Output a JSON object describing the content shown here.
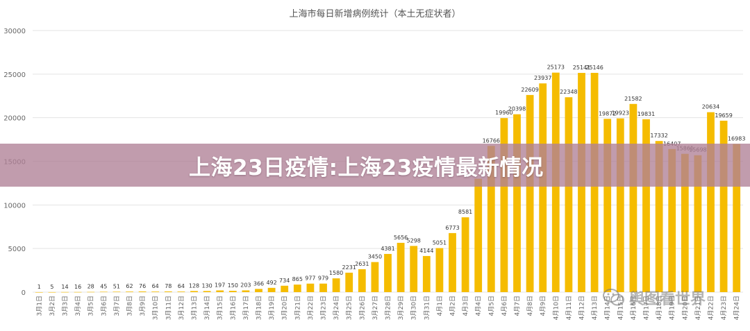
{
  "banner": {
    "headline": "上海23日疫情:上海23疫情最新情况"
  },
  "watermark": {
    "text": "舆图看世界",
    "icon": "wechat-icon"
  },
  "colors": {
    "bar": "#F5BC00",
    "grid": "#E3E3E3",
    "axis_text": "#666666",
    "label_text": "#333333"
  },
  "chart_data": {
    "type": "bar",
    "title": "上海市每日新增病例统计（本土无症状者）",
    "xlabel": "",
    "ylabel": "",
    "ylim": [
      0,
      30000
    ],
    "yticks": [
      0,
      5000,
      10000,
      15000,
      20000,
      25000,
      30000
    ],
    "grid": true,
    "categories": [
      "3月1日",
      "3月2日",
      "3月3日",
      "3月4日",
      "3月5日",
      "3月6日",
      "3月7日",
      "3月8日",
      "3月9日",
      "3月10日",
      "3月11日",
      "3月12日",
      "3月13日",
      "3月14日",
      "3月15日",
      "3月16日",
      "3月17日",
      "3月18日",
      "3月19日",
      "3月20日",
      "3月21日",
      "3月22日",
      "3月23日",
      "3月24日",
      "3月25日",
      "3月26日",
      "3月27日",
      "3月28日",
      "3月29日",
      "3月30日",
      "3月31日",
      "4月1日",
      "4月2日",
      "4月3日",
      "4月4日",
      "4月5日",
      "4月6日",
      "4月7日",
      "4月8日",
      "4月9日",
      "4月10日",
      "4月11日",
      "4月12日",
      "4月13日",
      "4月14日",
      "4月15日",
      "4月16日",
      "4月17日",
      "4月18日",
      "4月19日",
      "4月20日",
      "4月21日",
      "4月22日",
      "4月23日",
      "4月24日"
    ],
    "values": [
      1,
      5,
      14,
      16,
      28,
      45,
      51,
      62,
      76,
      64,
      78,
      64,
      128,
      130,
      197,
      150,
      203,
      366,
      492,
      734,
      865,
      977,
      979,
      1580,
      2231,
      2631,
      3450,
      4381,
      5656,
      5298,
      4144,
      5051,
      6773,
      8581,
      13000,
      16766,
      19960,
      20398,
      22609,
      23937,
      25173,
      22348,
      25141,
      25146,
      19872,
      19923,
      21582,
      19831,
      17332,
      16407,
      15861,
      15698,
      20634,
      19659,
      16983
    ],
    "data_labels": [
      "1",
      "5",
      "14",
      "16",
      "28",
      "45",
      "51",
      "62",
      "76",
      "64",
      "78",
      "64",
      "128",
      "130",
      "197",
      "150",
      "203",
      "366",
      "492",
      "734",
      "865",
      "977",
      "979",
      "1580",
      "2231",
      "2631",
      "3450",
      "4381",
      "5656",
      "5298",
      "4144",
      "5051",
      "6773",
      "8581",
      "",
      "16766",
      "19960",
      "20398",
      "22609",
      "23937",
      "25173",
      "22348",
      "25141",
      "25146",
      "19872",
      "19923",
      "21582",
      "19831",
      "17332",
      "16407",
      "15861",
      "15698",
      "20634",
      "19659",
      "16983"
    ]
  }
}
